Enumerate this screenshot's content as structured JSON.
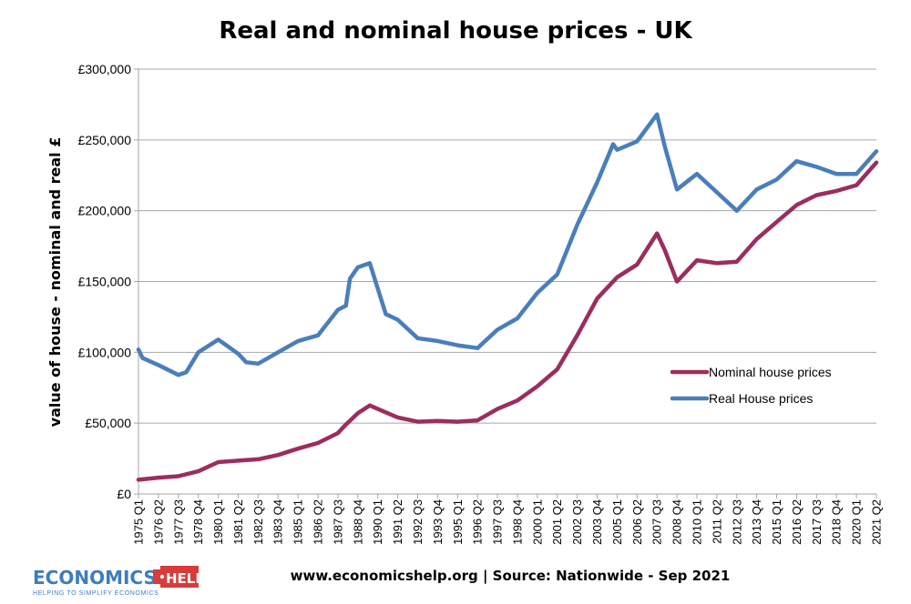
{
  "chart_data": {
    "type": "line",
    "title": "Real and nominal house prices - UK",
    "ylabel": "value of house - nominal and real £",
    "xlabel": "",
    "ylim": [
      0,
      300000
    ],
    "yticks": [
      0,
      50000,
      100000,
      150000,
      200000,
      250000,
      300000
    ],
    "ytick_labels": [
      "£0",
      "£50,000",
      "£100,000",
      "£150,000",
      "£200,000",
      "£250,000",
      "£300,000"
    ],
    "grid": true,
    "legend_position": "lower-right inside plot",
    "x_range": [
      "1975 Q1",
      "2021 Q2"
    ],
    "x_tick_labels": [
      "1975 Q1",
      "1976 Q2",
      "1977 Q3",
      "1978 Q4",
      "1980 Q1",
      "1981 Q2",
      "1982 Q3",
      "1983 Q4",
      "1985 Q1",
      "1986 Q2",
      "1987 Q3",
      "1988 Q4",
      "1990 Q1",
      "1991 Q2",
      "1992 Q3",
      "1993 Q4",
      "1995 Q1",
      "1996 Q2",
      "1997 Q3",
      "1998 Q4",
      "2000 Q1",
      "2001 Q2",
      "2002 Q3",
      "2003 Q4",
      "2005 Q1",
      "2006 Q2",
      "2007 Q3",
      "2008 Q4",
      "2010 Q1",
      "2011 Q2",
      "2012 Q3",
      "2013 Q4",
      "2015 Q1",
      "2016 Q2",
      "2017 Q3",
      "2018 Q4",
      "2020 Q1",
      "2021 Q2"
    ],
    "series": [
      {
        "name": "Nominal house prices",
        "color": "#9b2d5f",
        "points": [
          [
            "1975 Q1",
            10000
          ],
          [
            "1976 Q2",
            11500
          ],
          [
            "1977 Q3",
            12500
          ],
          [
            "1978 Q4",
            16000
          ],
          [
            "1980 Q1",
            22500
          ],
          [
            "1981 Q2",
            23500
          ],
          [
            "1982 Q3",
            24500
          ],
          [
            "1983 Q4",
            27500
          ],
          [
            "1985 Q1",
            32000
          ],
          [
            "1986 Q2",
            36000
          ],
          [
            "1987 Q3",
            43000
          ],
          [
            "1988 Q1",
            49000
          ],
          [
            "1988 Q4",
            57000
          ],
          [
            "1989 Q3",
            62500
          ],
          [
            "1990 Q1",
            60000
          ],
          [
            "1991 Q2",
            54000
          ],
          [
            "1992 Q3",
            51000
          ],
          [
            "1993 Q4",
            51500
          ],
          [
            "1995 Q1",
            51000
          ],
          [
            "1996 Q2",
            52000
          ],
          [
            "1997 Q3",
            60000
          ],
          [
            "1998 Q4",
            66000
          ],
          [
            "2000 Q1",
            76000
          ],
          [
            "2001 Q2",
            88000
          ],
          [
            "2002 Q3",
            112000
          ],
          [
            "2003 Q4",
            138000
          ],
          [
            "2005 Q1",
            153000
          ],
          [
            "2006 Q2",
            162000
          ],
          [
            "2007 Q3",
            184000
          ],
          [
            "2008 Q1",
            172000
          ],
          [
            "2008 Q4",
            150000
          ],
          [
            "2010 Q1",
            165000
          ],
          [
            "2011 Q2",
            163000
          ],
          [
            "2012 Q3",
            164000
          ],
          [
            "2013 Q4",
            180000
          ],
          [
            "2015 Q1",
            192000
          ],
          [
            "2016 Q2",
            204000
          ],
          [
            "2017 Q3",
            211000
          ],
          [
            "2018 Q4",
            214000
          ],
          [
            "2020 Q1",
            218000
          ],
          [
            "2021 Q2",
            234000
          ]
        ]
      },
      {
        "name": "Real House prices",
        "color": "#4a7ebb",
        "points": [
          [
            "1975 Q1",
            102000
          ],
          [
            "1975 Q2",
            96000
          ],
          [
            "1976 Q2",
            91000
          ],
          [
            "1977 Q3",
            84000
          ],
          [
            "1978 Q1",
            86000
          ],
          [
            "1978 Q4",
            100000
          ],
          [
            "1980 Q1",
            109000
          ],
          [
            "1981 Q2",
            99000
          ],
          [
            "1981 Q4",
            93000
          ],
          [
            "1982 Q3",
            92000
          ],
          [
            "1983 Q4",
            100000
          ],
          [
            "1985 Q1",
            108000
          ],
          [
            "1986 Q2",
            112000
          ],
          [
            "1987 Q3",
            130000
          ],
          [
            "1988 Q1",
            133000
          ],
          [
            "1988 Q2",
            152000
          ],
          [
            "1988 Q4",
            160000
          ],
          [
            "1989 Q3",
            163000
          ],
          [
            "1990 Q1",
            145000
          ],
          [
            "1990 Q3",
            127000
          ],
          [
            "1991 Q2",
            123000
          ],
          [
            "1992 Q3",
            110000
          ],
          [
            "1993 Q4",
            108000
          ],
          [
            "1995 Q1",
            105000
          ],
          [
            "1996 Q2",
            103000
          ],
          [
            "1997 Q3",
            116000
          ],
          [
            "1998 Q4",
            124000
          ],
          [
            "2000 Q1",
            142000
          ],
          [
            "2001 Q2",
            155000
          ],
          [
            "2002 Q3",
            190000
          ],
          [
            "2003 Q4",
            220000
          ],
          [
            "2004 Q4",
            247000
          ],
          [
            "2005 Q1",
            243000
          ],
          [
            "2006 Q2",
            249000
          ],
          [
            "2007 Q3",
            268000
          ],
          [
            "2008 Q1",
            245000
          ],
          [
            "2008 Q4",
            215000
          ],
          [
            "2010 Q1",
            226000
          ],
          [
            "2011 Q2",
            213000
          ],
          [
            "2012 Q3",
            200000
          ],
          [
            "2013 Q4",
            215000
          ],
          [
            "2015 Q1",
            222000
          ],
          [
            "2016 Q2",
            235000
          ],
          [
            "2017 Q3",
            231000
          ],
          [
            "2018 Q4",
            226000
          ],
          [
            "2020 Q1",
            226000
          ],
          [
            "2021 Q2",
            242000
          ]
        ]
      }
    ]
  },
  "footer": {
    "source": "www.economicshelp.org | Source: Nationwide - Sep 2021"
  },
  "logo": {
    "word1": "ECONOMICS",
    "word2": "HELP",
    "tagline": "HELPING TO SIMPLIFY ECONOMICS"
  }
}
